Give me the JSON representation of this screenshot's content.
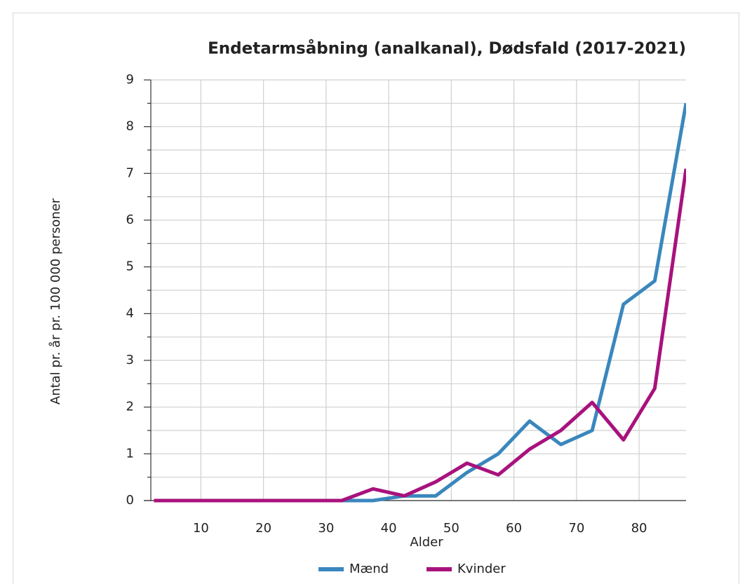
{
  "chart_data": {
    "type": "line",
    "title": "Endetarmsåbning (analkanal), Dødsfald (2017-2021)",
    "x_label": "Alder",
    "y_label": "Antal pr. år pr. 100 000 personer",
    "x": [
      2.5,
      7.5,
      12.5,
      17.5,
      22.5,
      27.5,
      32.5,
      37.5,
      42.5,
      47.5,
      52.5,
      57.5,
      62.5,
      67.5,
      72.5,
      77.5,
      82.5,
      87.5
    ],
    "series": [
      {
        "name": "Mænd",
        "color": "#3a87bd",
        "values": [
          0,
          0,
          0,
          0,
          0,
          0,
          0,
          0,
          0.1,
          0.1,
          0.6,
          1.0,
          1.7,
          1.2,
          1.5,
          4.2,
          4.7,
          8.5
        ]
      },
      {
        "name": "Kvinder",
        "color": "#a8127d",
        "values": [
          0,
          0,
          0,
          0,
          0,
          0,
          0,
          0.25,
          0.1,
          0.4,
          0.8,
          0.55,
          1.1,
          1.5,
          2.1,
          1.3,
          2.4,
          7.1
        ]
      }
    ],
    "xlim": [
      2,
      87.5
    ],
    "ylim": [
      0,
      9
    ],
    "xticks": [
      10,
      20,
      30,
      40,
      50,
      60,
      70,
      80
    ],
    "yticks": [
      0,
      1,
      2,
      3,
      4,
      5,
      6,
      7,
      8,
      9
    ],
    "y_minor_ticks": [
      0.5,
      1.5,
      2.5,
      3.5,
      4.5,
      5.5,
      6.5,
      7.5,
      8.5
    ],
    "grid": true,
    "legend": "bottom"
  }
}
